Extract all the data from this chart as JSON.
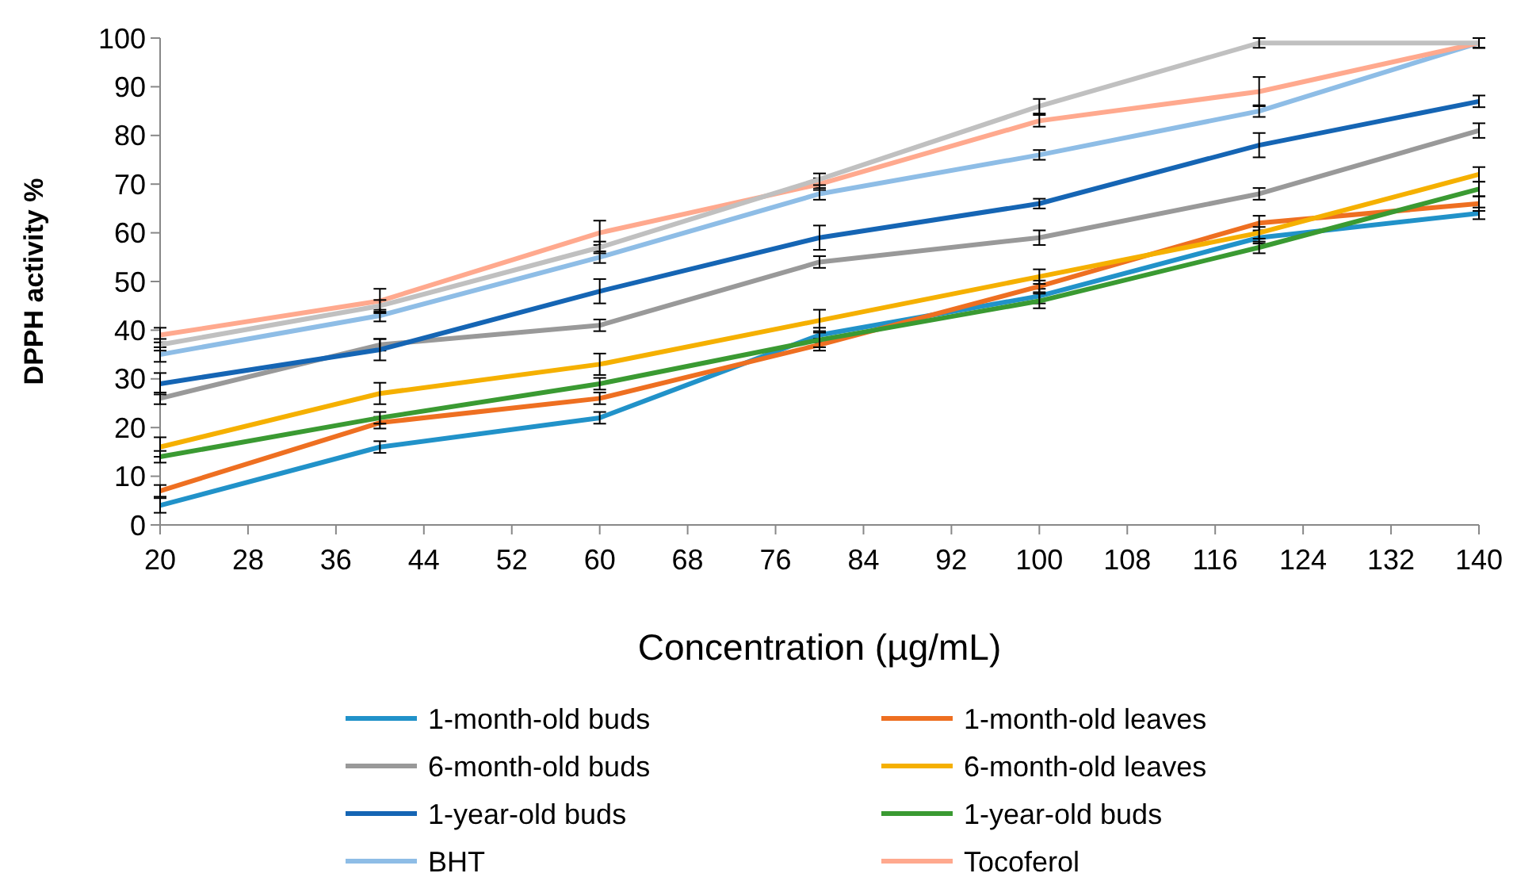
{
  "chart_data": {
    "type": "line",
    "xlabel": "Concentration (µg/mL)",
    "ylabel": "DPPH activity %",
    "x": [
      20,
      40,
      60,
      80,
      100,
      120,
      140
    ],
    "xlim": [
      20,
      140
    ],
    "xticks": [
      20,
      28,
      36,
      44,
      52,
      60,
      68,
      76,
      84,
      92,
      100,
      108,
      116,
      124,
      132,
      140
    ],
    "ylim": [
      0,
      100
    ],
    "yticks": [
      0,
      10,
      20,
      30,
      40,
      50,
      60,
      70,
      80,
      90,
      100
    ],
    "grid": false,
    "legend": "bottom",
    "line_style": "solid",
    "series": [
      {
        "name": "1-month-old buds",
        "color": "#2192c9",
        "values": [
          4,
          16,
          22,
          39,
          47,
          59,
          64
        ],
        "errors": [
          1.5,
          1.2,
          1.2,
          1.5,
          1.5,
          1.2,
          1.2
        ]
      },
      {
        "name": "1-month-old leaves",
        "color": "#ee6f21",
        "values": [
          7,
          21,
          26,
          37,
          49,
          62,
          66
        ],
        "errors": [
          1.2,
          1.2,
          1.2,
          1.2,
          1.2,
          1.5,
          1.5
        ]
      },
      {
        "name": "6-month-old buds",
        "color": "#999999",
        "values": [
          26,
          37,
          41,
          54,
          59,
          68,
          81
        ],
        "errors": [
          1.2,
          1.2,
          1.2,
          1.2,
          1.5,
          1.2,
          1.5
        ]
      },
      {
        "name": "6-month-old leaves",
        "color": "#f5b000",
        "values": [
          16,
          27,
          33,
          42,
          51,
          60,
          72
        ],
        "errors": [
          2,
          2.2,
          2.2,
          2.2,
          1.5,
          1.2,
          1.5
        ]
      },
      {
        "name": "1-year-old buds",
        "color": "#1565b4",
        "values": [
          29,
          36,
          48,
          59,
          66,
          78,
          87
        ],
        "errors": [
          2.2,
          2.2,
          2.5,
          2.5,
          1,
          2.5,
          1.2
        ]
      },
      {
        "name": "1-year-old buds",
        "color": "#3a9a32",
        "values": [
          14,
          22,
          29,
          38,
          46,
          57,
          69
        ],
        "errors": [
          1.2,
          1.2,
          1.2,
          1.5,
          1.5,
          1.2,
          1.5
        ]
      },
      {
        "name": "BHT",
        "color": "#8ebde6",
        "values": [
          35,
          43,
          55,
          68,
          76,
          85,
          99
        ],
        "errors": [
          1.5,
          1.2,
          1.2,
          1.2,
          1,
          1.2,
          1
        ]
      },
      {
        "name": "Tocoferol",
        "color": "#ffa98e",
        "values": [
          39,
          46,
          60,
          70,
          83,
          89,
          99
        ],
        "errors": [
          1.5,
          2.5,
          2.5,
          1.2,
          1.2,
          3,
          1
        ]
      },
      {
        "color": "#c0c0c0",
        "values": [
          37,
          45,
          57,
          71,
          86,
          99,
          99
        ],
        "errors": [
          1.2,
          1.2,
          1.2,
          1.2,
          1.5,
          1,
          1
        ]
      }
    ]
  }
}
